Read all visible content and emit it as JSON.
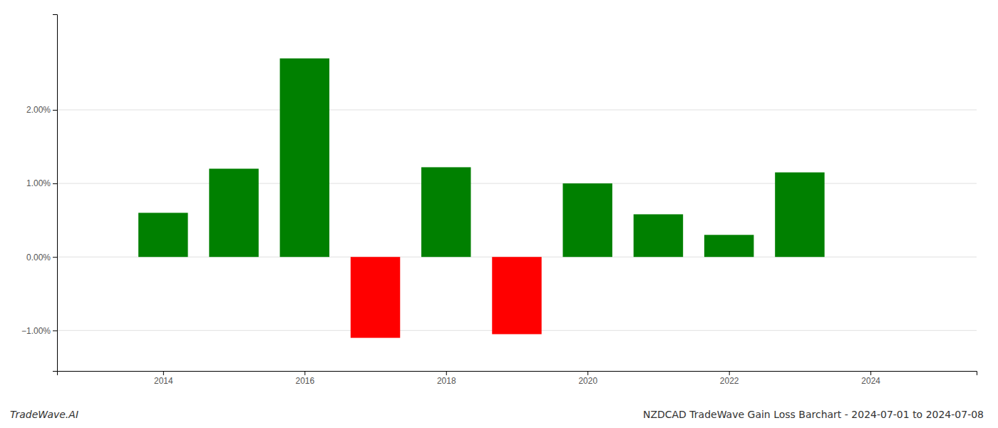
{
  "chart_data": {
    "type": "bar",
    "title": "NZDCAD TradeWave Gain Loss Barchart - 2024-07-01 to 2024-07-08",
    "annotations": [
      "TradeWave.AI"
    ],
    "x": [
      2014,
      2015,
      2016,
      2017,
      2018,
      2019,
      2020,
      2021,
      2022,
      2023
    ],
    "values": [
      0.006,
      0.012,
      0.027,
      -0.011,
      0.0122,
      -0.0105,
      0.01,
      0.0058,
      0.003,
      0.0115
    ],
    "colors": [
      "#008000",
      "#008000",
      "#008000",
      "#ff0000",
      "#008000",
      "#ff0000",
      "#008000",
      "#008000",
      "#008000",
      "#008000"
    ],
    "xlim": [
      2012.5,
      2025.5
    ],
    "xticks": [
      2014,
      2016,
      2018,
      2020,
      2022,
      2024
    ],
    "ylim": [
      -0.0155,
      0.033
    ],
    "yticks": [
      {
        "value": -0.01,
        "label": "−1.00%"
      },
      {
        "value": 0.0,
        "label": "0.00%"
      },
      {
        "value": 0.01,
        "label": "1.00%"
      },
      {
        "value": 0.02,
        "label": "2.00%"
      }
    ],
    "grid": true
  }
}
